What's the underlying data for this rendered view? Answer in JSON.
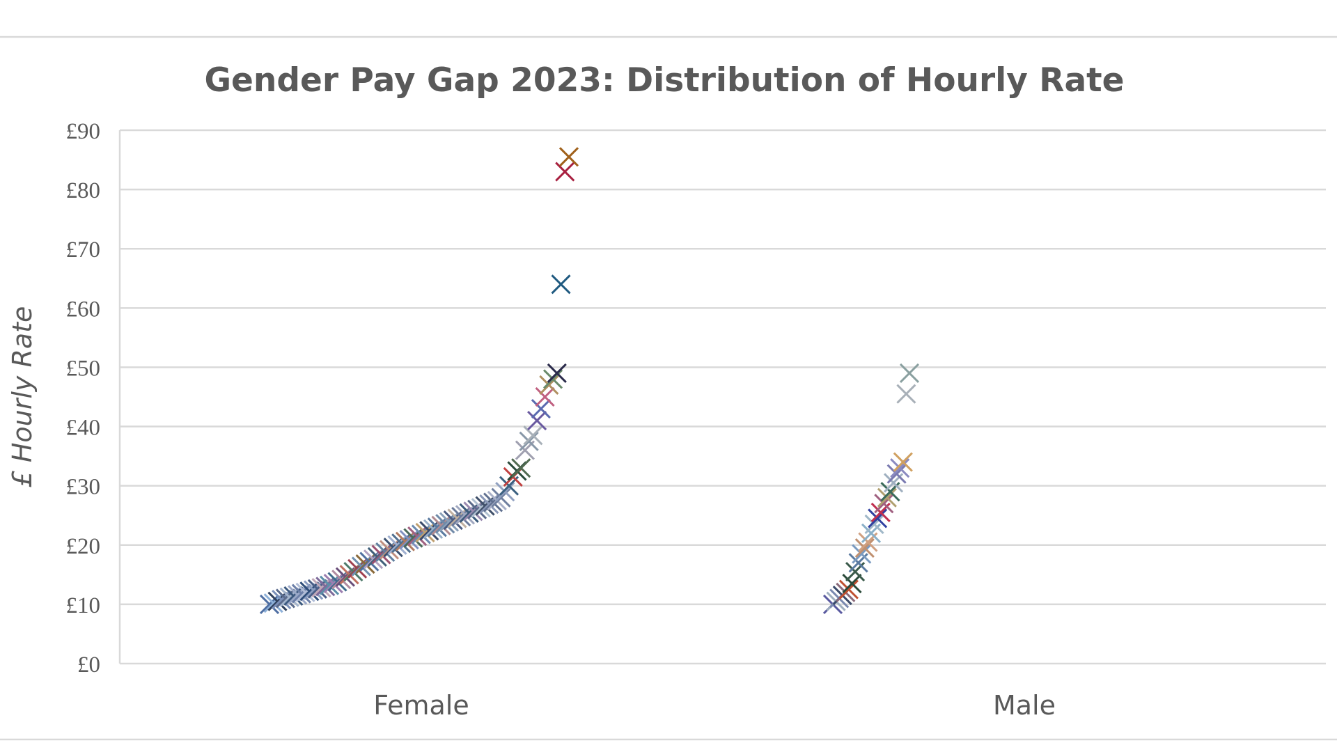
{
  "chart_data": {
    "type": "scatter",
    "title": "Gender Pay Gap 2023: Distribution of Hourly Rate",
    "ylabel": "£ Hourly Rate",
    "xlabel": "",
    "categories": [
      "Female",
      "Male"
    ],
    "ylim": [
      0,
      90
    ],
    "yticks": [
      0,
      10,
      20,
      30,
      40,
      50,
      60,
      70,
      80,
      90
    ],
    "ytick_labels": [
      "£0",
      "£10",
      "£20",
      "£30",
      "£40",
      "£50",
      "£60",
      "£70",
      "£80",
      "£90"
    ],
    "grid": true,
    "legend": "none",
    "marker": "x",
    "series": [
      {
        "category": "Female",
        "values": [
          10.0,
          10.2,
          10.5,
          10.8,
          11.0,
          11.2,
          11.4,
          11.6,
          11.8,
          12.0,
          12.2,
          12.4,
          12.6,
          12.8,
          13.0,
          13.2,
          13.5,
          13.8,
          14.2,
          14.6,
          15.0,
          15.5,
          16.0,
          16.4,
          16.8,
          17.2,
          17.6,
          18.0,
          18.4,
          18.8,
          19.2,
          19.6,
          20.0,
          20.3,
          20.6,
          20.9,
          21.2,
          21.5,
          21.8,
          22.1,
          22.4,
          22.7,
          23.0,
          23.3,
          23.6,
          23.9,
          24.2,
          24.5,
          24.8,
          25.1,
          25.4,
          25.7,
          26.0,
          26.3,
          26.6,
          26.9,
          27.2,
          27.5,
          28.0,
          29.0,
          30.0,
          31.5,
          32.5,
          33.0,
          36.0,
          37.5,
          38.5,
          41.0,
          43.0,
          45.0,
          47.0,
          48.0,
          49.0,
          64.0,
          83.0,
          85.5
        ],
        "colors": [
          "#4f6fa3",
          "#8db0d8",
          "#2e3f5c",
          "#7a8fb8",
          "#5b6b8c",
          "#a3b4cc",
          "#3d5a80",
          "#9aa8c8",
          "#6c7fa8",
          "#b0bcd6",
          "#2f4e7a",
          "#8a9cc0",
          "#4a5f88",
          "#c0a8b8",
          "#7d6a9a",
          "#5a8fa8",
          "#9c7fb0",
          "#3e6a8c",
          "#b08aa0",
          "#6a4f7a",
          "#c07060",
          "#4e7a6a",
          "#a04050",
          "#7090b0",
          "#8a6a3a",
          "#5070a0",
          "#b0a0c0",
          "#40607a",
          "#9a5070",
          "#6080a0",
          "#c09080",
          "#3a5070",
          "#a0b0d0",
          "#507090",
          "#b07a60",
          "#8090c0",
          "#4a6a5a",
          "#a06080",
          "#6a8ab0",
          "#c0a070",
          "#3a4a6a",
          "#9ab0c8",
          "#5a7aa0",
          "#b08a90",
          "#708aa8",
          "#8aa0b8",
          "#4a5a80",
          "#c0b0a0",
          "#6a7a9a",
          "#a0a8c0",
          "#3a5a7a",
          "#9a8ab0",
          "#5a6a8a",
          "#b0c0d0",
          "#40506a",
          "#8a98b8",
          "#607090",
          "#a8b0c8",
          "#7080a0",
          "#90a0c0",
          "#3a6080",
          "#c04040",
          "#2a4a3a",
          "#506a50",
          "#a0a0b0",
          "#8898a8",
          "#a8b0b8",
          "#6a5aa0",
          "#5a6ab0",
          "#c06080",
          "#b09060",
          "#6a8a6a",
          "#2a2a4a",
          "#1f5a80",
          "#a82040",
          "#a0601a"
        ]
      },
      {
        "category": "Male",
        "values": [
          10.0,
          10.5,
          11.0,
          11.5,
          12.0,
          12.5,
          13.5,
          15.5,
          17.0,
          18.5,
          19.5,
          20.5,
          22.0,
          23.5,
          24.5,
          25.5,
          27.0,
          28.0,
          29.0,
          30.5,
          32.0,
          33.0,
          34.0,
          45.5,
          49.0
        ],
        "colors": [
          "#5a5aa0",
          "#a0b0c0",
          "#7a8ab0",
          "#3a4a6a",
          "#8a6a7a",
          "#c05030",
          "#2a4a3a",
          "#3a5a4a",
          "#5a7aa0",
          "#7a9ac0",
          "#c09070",
          "#d0a080",
          "#8ab0c8",
          "#a0b8c8",
          "#3040a0",
          "#c03050",
          "#a06080",
          "#b0a070",
          "#3a6a5a",
          "#a0b0c0",
          "#7a7ab0",
          "#8a8ac0",
          "#d0a060",
          "#a8b0b8",
          "#8aa0a0"
        ]
      }
    ]
  }
}
